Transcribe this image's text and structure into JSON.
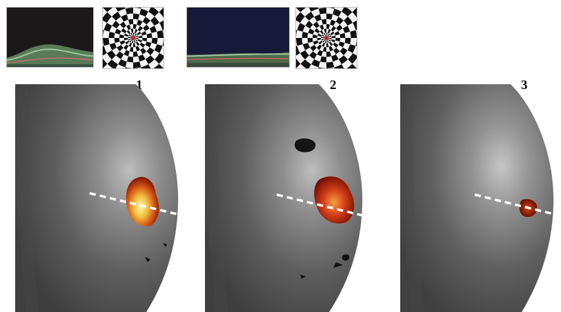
{
  "stimuli": [
    {
      "oct_scan": "oct-retina-scan-1",
      "pattern": "radial-checkerboard"
    },
    {
      "oct_scan": "oct-retina-scan-2",
      "pattern": "radial-checkerboard"
    }
  ],
  "panels": [
    {
      "label": "1",
      "activation": "large-bright"
    },
    {
      "label": "2",
      "activation": "medium-red"
    },
    {
      "label": "3",
      "activation": "small-dim"
    }
  ],
  "colors": {
    "surface": "#6a6a6a",
    "activation_hot": "#fff2a0",
    "activation_mid": "#e0601a",
    "activation_low": "#8a0e00",
    "guide_line": "#ffffff"
  }
}
